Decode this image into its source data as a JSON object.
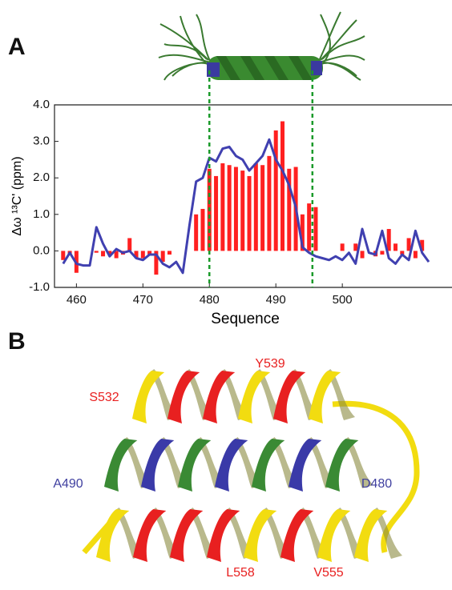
{
  "panels": [
    "A",
    "B"
  ],
  "chart_data": {
    "type": "bar",
    "x_label": "Sequence",
    "y_label": "Δω ¹³C' (ppm)",
    "x": [
      458,
      459,
      460,
      461,
      462,
      463,
      464,
      465,
      466,
      467,
      468,
      469,
      470,
      471,
      472,
      473,
      474,
      475,
      476,
      477,
      478,
      479,
      480,
      481,
      482,
      483,
      484,
      485,
      486,
      487,
      488,
      489,
      490,
      491,
      492,
      493,
      494,
      495,
      496,
      497,
      498,
      499,
      500,
      501,
      502,
      503,
      504,
      505,
      506,
      507,
      508,
      509,
      510,
      511,
      512,
      513
    ],
    "series": [
      {
        "type": "bar",
        "color": "#ff2020",
        "values": [
          -0.25,
          -0.1,
          -0.6,
          0,
          0,
          -0.05,
          -0.15,
          -0.1,
          -0.2,
          -0.1,
          0.35,
          -0.2,
          -0.2,
          -0.1,
          -0.65,
          -0.3,
          -0.1,
          0,
          0,
          0,
          1.0,
          1.15,
          2.25,
          2.05,
          2.4,
          2.35,
          2.3,
          2.2,
          2.05,
          2.4,
          2.35,
          2.6,
          3.3,
          3.55,
          2.25,
          2.3,
          1.0,
          1.3,
          1.2,
          0,
          0,
          0,
          0.2,
          0,
          0.2,
          -0.2,
          0,
          -0.15,
          -0.1,
          0.6,
          0.2,
          -0.1,
          0.35,
          -0.2,
          0.3,
          0
        ]
      },
      {
        "type": "line",
        "color": "#4040b0",
        "values": [
          -0.35,
          -0.05,
          -0.35,
          -0.4,
          -0.4,
          0.65,
          0.2,
          -0.15,
          0.05,
          -0.05,
          0,
          -0.2,
          -0.25,
          -0.1,
          -0.1,
          -0.35,
          -0.45,
          -0.3,
          -0.6,
          0.7,
          1.9,
          2.0,
          2.55,
          2.45,
          2.8,
          2.85,
          2.6,
          2.5,
          2.2,
          2.4,
          2.6,
          3.05,
          2.5,
          2.2,
          1.8,
          1.2,
          0.1,
          -0.05,
          -0.15,
          -0.2,
          -0.25,
          -0.15,
          -0.25,
          -0.05,
          -0.35,
          0.6,
          -0.05,
          -0.1,
          0.55,
          -0.2,
          -0.35,
          -0.1,
          -0.25,
          0.55,
          -0.05,
          -0.3
        ]
      }
    ],
    "xlim": [
      456.7,
      516.5
    ],
    "xticks": [
      460,
      470,
      480,
      490,
      500
    ],
    "ylim": [
      -1,
      4
    ],
    "yticks": [
      {
        "value": -1,
        "label": "-1.0"
      },
      {
        "value": 0,
        "label": "0.0"
      },
      {
        "value": 1,
        "label": "1.0"
      },
      {
        "value": 2,
        "label": "2.0"
      },
      {
        "value": 3,
        "label": "3.0"
      },
      {
        "value": 4,
        "label": "4.0"
      }
    ],
    "helix_bounds": [
      480,
      495.5
    ],
    "helix_bounds_color": "#1a9a2a"
  },
  "structure_labels": [
    {
      "text": "S532",
      "color": "#e82020"
    },
    {
      "text": "Y539",
      "color": "#e82020"
    },
    {
      "text": "A490",
      "color": "#4040a0"
    },
    {
      "text": "D480",
      "color": "#4040a0"
    },
    {
      "text": "L558",
      "color": "#e82020"
    },
    {
      "text": "V555",
      "color": "#e82020"
    }
  ]
}
